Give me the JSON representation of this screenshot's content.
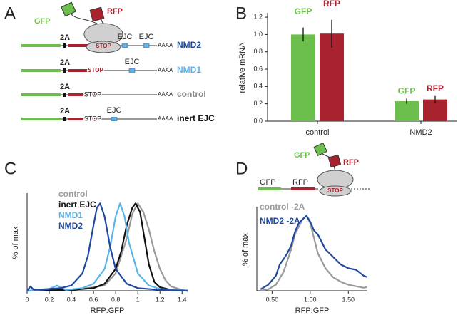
{
  "panel_labels": [
    "A",
    "B",
    "C",
    "D"
  ],
  "panel_a": {
    "tags": [
      "GFP",
      "RFP"
    ],
    "constructs": [
      {
        "marker": "2A",
        "stop": "STOP",
        "ejc": [
          "EJC",
          "EJC"
        ],
        "tail": "AAAA",
        "label": "NMD2"
      },
      {
        "marker": "2A",
        "stop": "STOP",
        "ejc": [
          "EJC"
        ],
        "tail": "AAAA",
        "label": "NMD1"
      },
      {
        "marker": "2A",
        "stop": "STOP",
        "ejc": [],
        "tail": "AAAA",
        "label": "control"
      },
      {
        "marker": "2A",
        "stop": "STOP",
        "ejc": [
          "EJC"
        ],
        "tail": "AAAA",
        "label": "inert EJC"
      }
    ]
  },
  "panel_d": {
    "tags": [
      "GFP",
      "RFP"
    ],
    "segments": [
      "GFP",
      "RFP"
    ],
    "stop": "STOP"
  },
  "chart_data": [
    {
      "type": "bar",
      "ylabel": "relative mRNA",
      "categories": [
        "control",
        "NMD2"
      ],
      "series": [
        {
          "name": "GFP",
          "color": "#6cbf4c",
          "values": [
            1.0,
            0.23
          ],
          "errors": [
            0.08,
            0.03
          ]
        },
        {
          "name": "RFP",
          "color": "#a9232f",
          "values": [
            1.01,
            0.25
          ],
          "errors": [
            0.16,
            0.04
          ]
        }
      ],
      "ylim": [
        0,
        1.25
      ],
      "yticks": [
        {
          "value": 0,
          "label": "0.0"
        },
        0.2,
        0.4,
        0.6,
        0.8,
        {
          "value": 1,
          "label": "1.0"
        },
        1.2
      ]
    },
    {
      "type": "line",
      "xlabel": "RFP:GFP",
      "ylabel": "% of max",
      "xlim": [
        0,
        1.45
      ],
      "ylim": [
        0,
        110
      ],
      "xticks": [
        0,
        0.2,
        0.4,
        0.6,
        0.8,
        1,
        1.2,
        1.4
      ],
      "series": [
        {
          "name": "control",
          "color": "#9a9a9a",
          "x": [
            0,
            0.5,
            0.7,
            0.8,
            0.9,
            0.95,
            1.0,
            1.05,
            1.1,
            1.15,
            1.2,
            1.25,
            1.3,
            1.4,
            1.45
          ],
          "values": [
            0,
            2,
            6,
            20,
            60,
            88,
            100,
            90,
            70,
            45,
            25,
            12,
            5,
            1,
            0
          ]
        },
        {
          "name": "inert EJC",
          "color": "#111111",
          "x": [
            0,
            0.4,
            0.6,
            0.7,
            0.8,
            0.85,
            0.9,
            0.95,
            0.98,
            1.02,
            1.06,
            1.1,
            1.15,
            1.2,
            1.3,
            1.45
          ],
          "values": [
            0,
            1,
            3,
            8,
            25,
            45,
            75,
            95,
            100,
            90,
            60,
            30,
            10,
            4,
            1,
            0
          ]
        },
        {
          "name": "NMD1",
          "color": "#5ab4e8",
          "x": [
            0,
            0.2,
            0.27,
            0.35,
            0.5,
            0.6,
            0.7,
            0.75,
            0.8,
            0.84,
            0.88,
            0.92,
            1.0,
            1.1,
            1.2,
            1.45
          ],
          "values": [
            0,
            2,
            6,
            1,
            3,
            8,
            25,
            50,
            85,
            100,
            85,
            55,
            20,
            6,
            2,
            0
          ]
        },
        {
          "name": "NMD2",
          "color": "#1f4aa0",
          "x": [
            0,
            0.03,
            0.06,
            0.2,
            0.3,
            0.4,
            0.5,
            0.55,
            0.6,
            0.63,
            0.66,
            0.7,
            0.75,
            0.8,
            0.9,
            1.0,
            1.2,
            1.45
          ],
          "values": [
            0,
            5,
            1,
            2,
            3,
            6,
            20,
            40,
            75,
            95,
            100,
            85,
            50,
            25,
            8,
            3,
            1,
            0
          ]
        }
      ]
    },
    {
      "type": "line",
      "xlabel": "RFP:GFP",
      "ylabel": "% of max",
      "xlim": [
        0.3,
        1.75
      ],
      "ylim": [
        0,
        110
      ],
      "xticks": [
        {
          "value": 0.5,
          "label": "0.50"
        },
        {
          "value": 1,
          "label": "1.00"
        },
        {
          "value": 1.5,
          "label": "1.50"
        }
      ],
      "series": [
        {
          "name": "control -2A",
          "color": "#9a9a9a",
          "x": [
            0.35,
            0.45,
            0.55,
            0.65,
            0.7,
            0.75,
            0.8,
            0.85,
            0.9,
            0.95,
            1.0,
            1.05,
            1.1,
            1.2,
            1.3,
            1.4,
            1.5,
            1.6,
            1.7,
            1.75
          ],
          "values": [
            0,
            2,
            8,
            25,
            40,
            55,
            75,
            85,
            95,
            100,
            90,
            70,
            50,
            30,
            18,
            12,
            8,
            6,
            4,
            5
          ]
        },
        {
          "name": "NMD2 -2A",
          "color": "#1f4aa0",
          "x": [
            0.35,
            0.45,
            0.55,
            0.6,
            0.65,
            0.7,
            0.75,
            0.8,
            0.85,
            0.9,
            0.95,
            1.0,
            1.05,
            1.1,
            1.2,
            1.3,
            1.4,
            1.5,
            1.6,
            1.7,
            1.75
          ],
          "values": [
            2,
            8,
            20,
            35,
            42,
            50,
            60,
            78,
            90,
            95,
            100,
            92,
            80,
            75,
            55,
            45,
            35,
            30,
            28,
            20,
            18
          ]
        }
      ]
    }
  ]
}
